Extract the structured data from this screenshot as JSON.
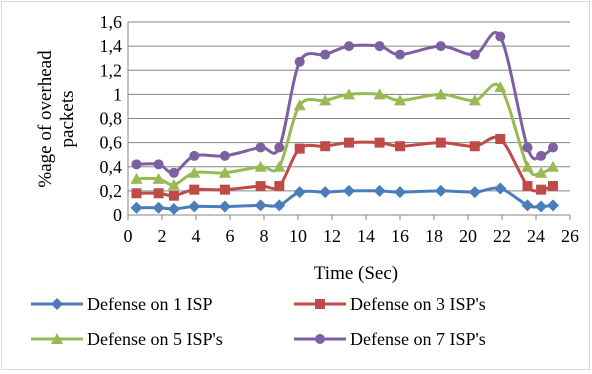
{
  "chart_data": {
    "type": "line",
    "xlabel": "Time (Sec)",
    "ylabel": "%age of overhead packets",
    "ylabel_lines": [
      "%age of overhead",
      "packets"
    ],
    "xlim": [
      0,
      26
    ],
    "ylim": [
      0,
      1.6
    ],
    "xticks": [
      0,
      2,
      4,
      6,
      8,
      10,
      12,
      14,
      16,
      18,
      20,
      22,
      24,
      26
    ],
    "xtick_labels": [
      "0",
      "2",
      "4",
      "6",
      "8",
      "10",
      "12",
      "14",
      "16",
      "18",
      "20",
      "22",
      "24",
      "26"
    ],
    "yticks": [
      0,
      0.2,
      0.4,
      0.6,
      0.8,
      1,
      1.2,
      1.4,
      1.6
    ],
    "ytick_labels": [
      "0",
      "0,2",
      "0,4",
      "0,6",
      "0,8",
      "1",
      "1,2",
      "1,4",
      "1,6"
    ],
    "grid": true,
    "legend_position": "bottom",
    "series": [
      {
        "name": "Defense on 1 ISP",
        "color": "#4a7ebb",
        "marker": "diamond",
        "x": [
          0.5,
          1.8,
          2.7,
          3.9,
          5.7,
          7.8,
          8.9,
          10.1,
          11.6,
          13.0,
          14.8,
          16.0,
          18.4,
          20.4,
          21.9,
          23.5,
          24.3,
          25.0
        ],
        "y": [
          0.06,
          0.06,
          0.05,
          0.07,
          0.07,
          0.08,
          0.08,
          0.19,
          0.19,
          0.2,
          0.2,
          0.19,
          0.2,
          0.19,
          0.22,
          0.08,
          0.07,
          0.08
        ]
      },
      {
        "name": "Defense on 3 ISP's",
        "color": "#be4b48",
        "marker": "square",
        "x": [
          0.5,
          1.8,
          2.7,
          3.9,
          5.7,
          7.8,
          8.9,
          10.1,
          11.6,
          13.0,
          14.8,
          16.0,
          18.4,
          20.4,
          21.9,
          23.5,
          24.3,
          25.0
        ],
        "y": [
          0.18,
          0.18,
          0.16,
          0.21,
          0.21,
          0.24,
          0.24,
          0.55,
          0.57,
          0.6,
          0.6,
          0.57,
          0.6,
          0.57,
          0.63,
          0.24,
          0.21,
          0.24
        ]
      },
      {
        "name": "Defense on 5 ISP's",
        "color": "#98b954",
        "marker": "triangle",
        "x": [
          0.5,
          1.8,
          2.7,
          3.9,
          5.7,
          7.8,
          8.9,
          10.1,
          11.6,
          13.0,
          14.8,
          16.0,
          18.4,
          20.4,
          21.9,
          23.5,
          24.3,
          25.0
        ],
        "y": [
          0.3,
          0.3,
          0.25,
          0.35,
          0.35,
          0.4,
          0.4,
          0.91,
          0.95,
          1.0,
          1.0,
          0.95,
          1.0,
          0.95,
          1.06,
          0.4,
          0.35,
          0.4
        ]
      },
      {
        "name": "Defense on 7 ISP's",
        "color": "#7d60a0",
        "marker": "circle",
        "x": [
          0.5,
          1.8,
          2.7,
          3.9,
          5.7,
          7.8,
          8.9,
          10.1,
          11.6,
          13.0,
          14.8,
          16.0,
          18.4,
          20.4,
          21.9,
          23.5,
          24.3,
          25.0
        ],
        "y": [
          0.42,
          0.42,
          0.35,
          0.49,
          0.49,
          0.56,
          0.56,
          1.27,
          1.33,
          1.4,
          1.4,
          1.33,
          1.4,
          1.33,
          1.48,
          0.56,
          0.49,
          0.56
        ]
      }
    ]
  }
}
